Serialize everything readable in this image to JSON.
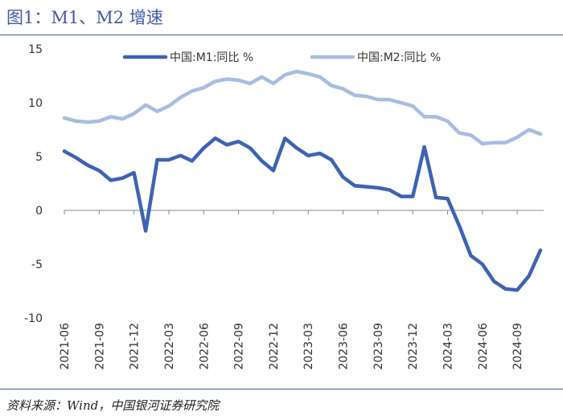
{
  "header": {
    "title": "图1：M1、M2 增速"
  },
  "footer": {
    "source": "资料来源：Wind，中国银河证券研究院"
  },
  "colors": {
    "m1": "#3d63b3",
    "m2": "#a7bde2",
    "zero_line": "#888888",
    "rule": "#3e5aa3"
  },
  "chart_data": {
    "type": "line",
    "title": "图1：M1、M2 增速",
    "xlabel": "",
    "ylabel": "",
    "ylim": [
      -10,
      15
    ],
    "yticks": [
      "15",
      "10",
      "5",
      "0",
      "-5",
      "-10"
    ],
    "xtick_labels": [
      "2021-06",
      "2021-09",
      "2021-12",
      "2022-03",
      "2022-06",
      "2022-09",
      "2022-12",
      "2023-03",
      "2023-06",
      "2023-09",
      "2023-12",
      "2024-03",
      "2024-06",
      "2024-09"
    ],
    "x": [
      "2021-06",
      "2021-07",
      "2021-08",
      "2021-09",
      "2021-10",
      "2021-11",
      "2021-12",
      "2022-01",
      "2022-02",
      "2022-03",
      "2022-04",
      "2022-05",
      "2022-06",
      "2022-07",
      "2022-08",
      "2022-09",
      "2022-10",
      "2022-11",
      "2022-12",
      "2023-01",
      "2023-02",
      "2023-03",
      "2023-04",
      "2023-05",
      "2023-06",
      "2023-07",
      "2023-08",
      "2023-09",
      "2023-10",
      "2023-11",
      "2023-12",
      "2024-01",
      "2024-02",
      "2024-03",
      "2024-04",
      "2024-05",
      "2024-06",
      "2024-07",
      "2024-08",
      "2024-09",
      "2024-10",
      "2024-11"
    ],
    "legend_position": "top",
    "grid": false,
    "series": [
      {
        "name": "中国:M1:同比 %",
        "values": [
          5.5,
          4.9,
          4.2,
          3.7,
          2.8,
          3.0,
          3.5,
          -1.9,
          4.7,
          4.7,
          5.1,
          4.6,
          5.8,
          6.7,
          6.1,
          6.4,
          5.8,
          4.6,
          3.7,
          6.7,
          5.8,
          5.1,
          5.3,
          4.7,
          3.1,
          2.3,
          2.2,
          2.1,
          1.9,
          1.3,
          1.3,
          5.9,
          1.2,
          1.1,
          -1.4,
          -4.2,
          -5.0,
          -6.6,
          -7.3,
          -7.4,
          -6.1,
          -3.7
        ]
      },
      {
        "name": "中国:M2:同比 %",
        "values": [
          8.6,
          8.3,
          8.2,
          8.3,
          8.7,
          8.5,
          9.0,
          9.8,
          9.2,
          9.7,
          10.5,
          11.1,
          11.4,
          12.0,
          12.2,
          12.1,
          11.8,
          12.4,
          11.8,
          12.6,
          12.9,
          12.7,
          12.4,
          11.6,
          11.3,
          10.7,
          10.6,
          10.3,
          10.3,
          10.0,
          9.7,
          8.7,
          8.7,
          8.3,
          7.2,
          7.0,
          6.2,
          6.3,
          6.3,
          6.8,
          7.5,
          7.1
        ]
      }
    ]
  }
}
